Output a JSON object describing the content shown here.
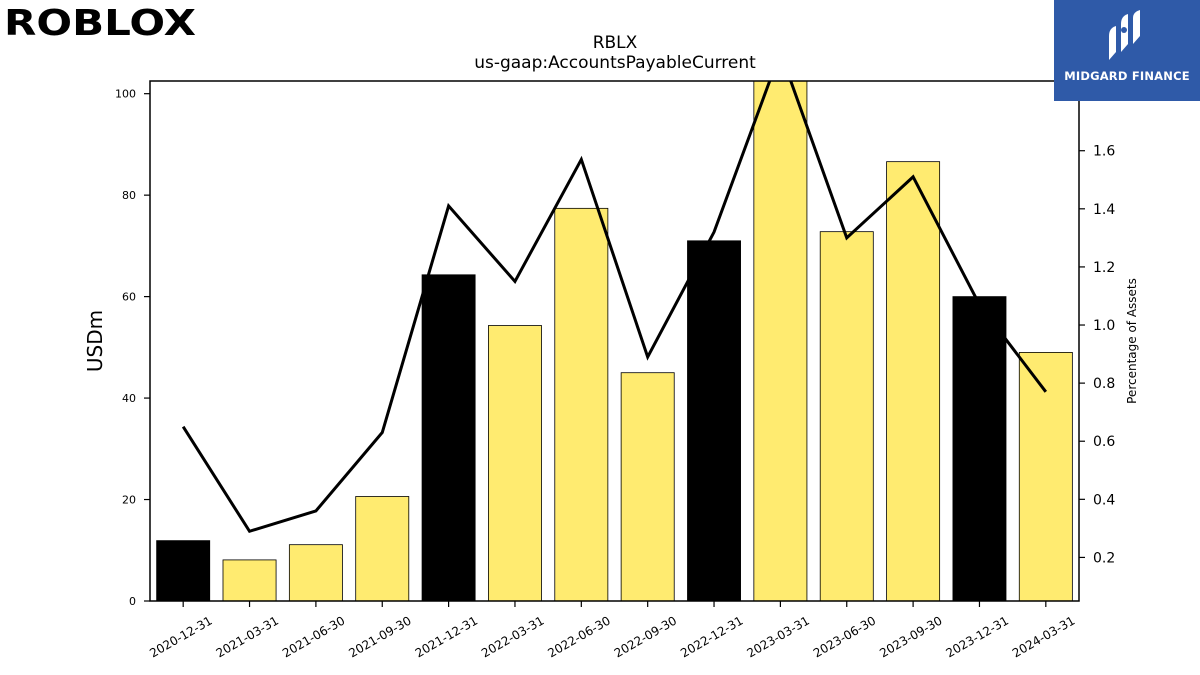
{
  "brand": {
    "left_logo_text": "ROBLOX",
    "right_logo_text": "MIDGARD FINANCE",
    "right_logo_bg": "#2f5aa8"
  },
  "chart_data": {
    "type": "bar",
    "title": "RBLX",
    "subtitle": "us-gaap:AccountsPayableCurrent",
    "ylabel": "USDm",
    "y2label": "Percentage of Assets",
    "categories": [
      "2020-12-31",
      "2021-03-31",
      "2021-06-30",
      "2021-09-30",
      "2021-12-31",
      "2022-03-31",
      "2022-06-30",
      "2022-09-30",
      "2022-12-31",
      "2023-03-31",
      "2023-06-30",
      "2023-09-30",
      "2023-12-31",
      "2024-03-31"
    ],
    "series": [
      {
        "kind": "bar",
        "axis": "left",
        "values": [
          11.9,
          8.1,
          11.1,
          20.6,
          64.3,
          54.3,
          77.4,
          45.0,
          71.0,
          103.5,
          72.8,
          86.6,
          60.0,
          49.0
        ],
        "colors": [
          "#000000",
          "#ffeb70",
          "#ffeb70",
          "#ffeb70",
          "#000000",
          "#ffeb70",
          "#ffeb70",
          "#ffeb70",
          "#000000",
          "#ffeb70",
          "#ffeb70",
          "#ffeb70",
          "#000000",
          "#ffeb70"
        ]
      },
      {
        "kind": "line",
        "axis": "right",
        "color": "#000000",
        "values": [
          0.65,
          0.29,
          0.36,
          0.63,
          1.41,
          1.15,
          1.57,
          0.89,
          1.32,
          1.94,
          1.3,
          1.51,
          1.07,
          0.77
        ]
      }
    ],
    "ylim": [
      0,
      102.5
    ],
    "y2lim": [
      0.05,
      1.84
    ],
    "yticks": [
      0,
      20,
      40,
      60,
      80,
      100
    ],
    "y2ticks": [
      0.2,
      0.4,
      0.6,
      0.8,
      1.0,
      1.2,
      1.4,
      1.6
    ],
    "grid": false,
    "legend": "none"
  }
}
